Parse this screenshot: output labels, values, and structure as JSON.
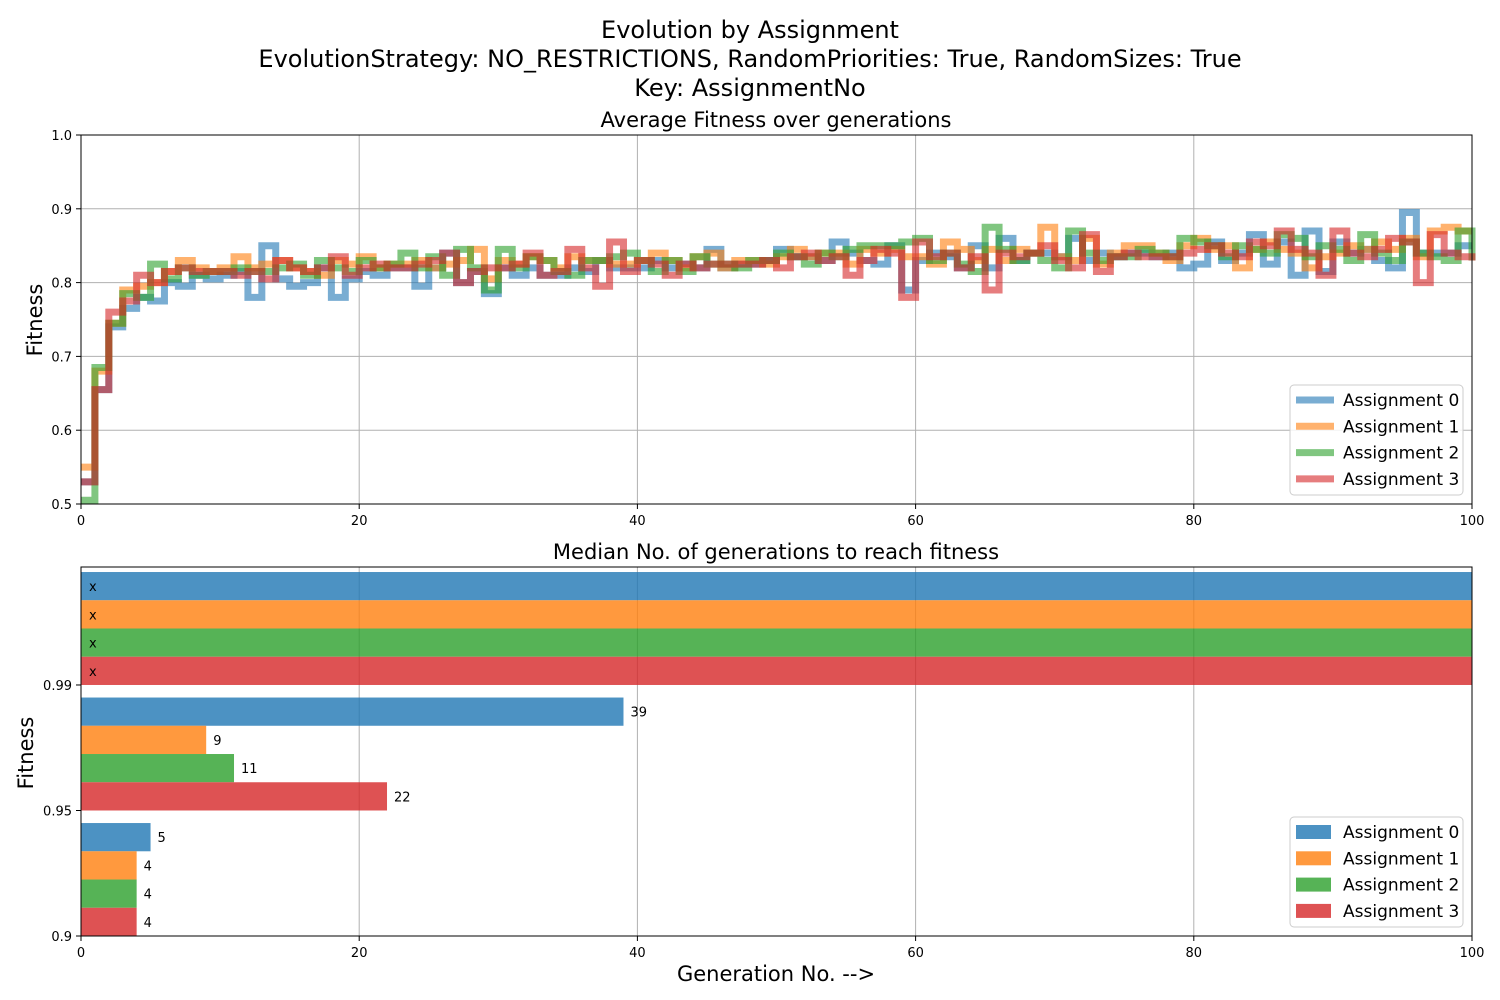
{
  "figure": {
    "title_lines": [
      "Evolution by Assignment",
      "EvolutionStrategy: NO_RESTRICTIONS, RandomPriorities: True, RandomSizes: True",
      "Key: AssignmentNo"
    ],
    "xlabel": "Generation No. -->"
  },
  "colors": {
    "Assignment 0": "#1f77b4",
    "Assignment 1": "#ff7f0e",
    "Assignment 2": "#2ca02c",
    "Assignment 3": "#d62728"
  },
  "chart_data": [
    {
      "type": "line",
      "title": "Average Fitness over generations",
      "xlabel": "",
      "ylabel": "Fitness",
      "xlim": [
        0,
        100
      ],
      "ylim": [
        0.5,
        1.0
      ],
      "x_ticks": [
        0,
        20,
        40,
        60,
        80,
        100
      ],
      "y_ticks": [
        0.5,
        0.6,
        0.7,
        0.8,
        0.9,
        1.0
      ],
      "y_tick_labels": [
        "0.5",
        "0.6",
        "0.7",
        "0.8",
        "0.9",
        "1.0"
      ],
      "grid": true,
      "legend_position": "lower-right",
      "drawstyle": "steps",
      "series": [
        {
          "name": "Assignment 0",
          "values": [
            0.53,
            0.655,
            0.74,
            0.765,
            0.78,
            0.775,
            0.8,
            0.795,
            0.81,
            0.805,
            0.81,
            0.815,
            0.78,
            0.85,
            0.805,
            0.795,
            0.8,
            0.82,
            0.78,
            0.805,
            0.815,
            0.81,
            0.82,
            0.82,
            0.795,
            0.82,
            0.84,
            0.8,
            0.815,
            0.785,
            0.82,
            0.81,
            0.82,
            0.81,
            0.81,
            0.82,
            0.815,
            0.83,
            0.82,
            0.82,
            0.82,
            0.83,
            0.82,
            0.825,
            0.82,
            0.845,
            0.82,
            0.825,
            0.825,
            0.83,
            0.845,
            0.835,
            0.835,
            0.83,
            0.855,
            0.84,
            0.83,
            0.825,
            0.85,
            0.79,
            0.83,
            0.84,
            0.835,
            0.82,
            0.85,
            0.82,
            0.86,
            0.83,
            0.84,
            0.84,
            0.835,
            0.86,
            0.83,
            0.84,
            0.835,
            0.84,
            0.84,
            0.835,
            0.84,
            0.82,
            0.825,
            0.855,
            0.83,
            0.84,
            0.865,
            0.825,
            0.855,
            0.81,
            0.87,
            0.815,
            0.855,
            0.84,
            0.845,
            0.83,
            0.82,
            0.895,
            0.84,
            0.84,
            0.84,
            0.85,
            0.85
          ]
        },
        {
          "name": "Assignment 1",
          "values": [
            0.55,
            0.68,
            0.745,
            0.79,
            0.795,
            0.8,
            0.815,
            0.83,
            0.82,
            0.815,
            0.82,
            0.835,
            0.82,
            0.825,
            0.83,
            0.82,
            0.815,
            0.81,
            0.83,
            0.825,
            0.835,
            0.82,
            0.825,
            0.825,
            0.83,
            0.82,
            0.825,
            0.83,
            0.845,
            0.805,
            0.83,
            0.825,
            0.835,
            0.83,
            0.82,
            0.835,
            0.83,
            0.83,
            0.825,
            0.825,
            0.83,
            0.84,
            0.83,
            0.82,
            0.835,
            0.84,
            0.82,
            0.83,
            0.83,
            0.825,
            0.835,
            0.845,
            0.835,
            0.84,
            0.84,
            0.825,
            0.845,
            0.84,
            0.845,
            0.835,
            0.835,
            0.825,
            0.855,
            0.845,
            0.83,
            0.845,
            0.83,
            0.845,
            0.84,
            0.875,
            0.835,
            0.83,
            0.86,
            0.825,
            0.84,
            0.85,
            0.85,
            0.84,
            0.83,
            0.85,
            0.86,
            0.845,
            0.85,
            0.82,
            0.845,
            0.855,
            0.845,
            0.84,
            0.82,
            0.835,
            0.84,
            0.85,
            0.845,
            0.855,
            0.845,
            0.86,
            0.835,
            0.87,
            0.875,
            0.87,
            0.87
          ]
        },
        {
          "name": "Assignment 2",
          "values": [
            0.505,
            0.685,
            0.745,
            0.785,
            0.78,
            0.825,
            0.805,
            0.82,
            0.81,
            0.815,
            0.815,
            0.82,
            0.815,
            0.815,
            0.82,
            0.825,
            0.81,
            0.83,
            0.82,
            0.815,
            0.83,
            0.82,
            0.825,
            0.84,
            0.82,
            0.835,
            0.81,
            0.845,
            0.82,
            0.79,
            0.845,
            0.82,
            0.835,
            0.83,
            0.815,
            0.81,
            0.83,
            0.83,
            0.835,
            0.84,
            0.83,
            0.815,
            0.83,
            0.815,
            0.835,
            0.825,
            0.825,
            0.82,
            0.83,
            0.83,
            0.84,
            0.835,
            0.825,
            0.84,
            0.835,
            0.845,
            0.85,
            0.85,
            0.85,
            0.855,
            0.86,
            0.83,
            0.84,
            0.825,
            0.815,
            0.875,
            0.845,
            0.83,
            0.84,
            0.83,
            0.82,
            0.87,
            0.84,
            0.83,
            0.835,
            0.835,
            0.845,
            0.84,
            0.835,
            0.86,
            0.855,
            0.85,
            0.835,
            0.85,
            0.845,
            0.84,
            0.865,
            0.86,
            0.835,
            0.85,
            0.845,
            0.83,
            0.865,
            0.84,
            0.83,
            0.855,
            0.84,
            0.835,
            0.83,
            0.87,
            0.83
          ]
        },
        {
          "name": "Assignment 3",
          "values": [
            0.53,
            0.655,
            0.76,
            0.775,
            0.81,
            0.8,
            0.815,
            0.82,
            0.815,
            0.815,
            0.815,
            0.81,
            0.815,
            0.805,
            0.83,
            0.82,
            0.815,
            0.82,
            0.835,
            0.81,
            0.82,
            0.825,
            0.82,
            0.82,
            0.825,
            0.83,
            0.84,
            0.8,
            0.815,
            0.82,
            0.82,
            0.825,
            0.84,
            0.81,
            0.815,
            0.845,
            0.82,
            0.795,
            0.855,
            0.815,
            0.83,
            0.825,
            0.81,
            0.825,
            0.82,
            0.825,
            0.825,
            0.825,
            0.825,
            0.83,
            0.82,
            0.835,
            0.84,
            0.83,
            0.835,
            0.81,
            0.83,
            0.845,
            0.84,
            0.78,
            0.855,
            0.835,
            0.84,
            0.82,
            0.835,
            0.79,
            0.84,
            0.835,
            0.84,
            0.85,
            0.83,
            0.82,
            0.865,
            0.815,
            0.835,
            0.84,
            0.835,
            0.835,
            0.835,
            0.84,
            0.845,
            0.85,
            0.84,
            0.835,
            0.855,
            0.85,
            0.87,
            0.845,
            0.84,
            0.81,
            0.87,
            0.84,
            0.835,
            0.845,
            0.86,
            0.855,
            0.8,
            0.865,
            0.84,
            0.835,
            0.83
          ]
        }
      ]
    },
    {
      "type": "bar",
      "orientation": "horizontal",
      "title": "Median No. of generations to reach fitness",
      "xlabel": "Generation No. -->",
      "ylabel": "Fitness",
      "xlim": [
        0,
        100
      ],
      "x_ticks": [
        0,
        20,
        40,
        60,
        80,
        100
      ],
      "categories": [
        "0.9",
        "0.95",
        "0.99"
      ],
      "grid": true,
      "legend_position": "lower-right",
      "series": [
        {
          "name": "Assignment 0",
          "values": [
            5,
            39,
            100
          ],
          "labels": [
            "5",
            "39",
            "x"
          ]
        },
        {
          "name": "Assignment 1",
          "values": [
            4,
            9,
            100
          ],
          "labels": [
            "4",
            "9",
            "x"
          ]
        },
        {
          "name": "Assignment 2",
          "values": [
            4,
            11,
            100
          ],
          "labels": [
            "4",
            "11",
            "x"
          ]
        },
        {
          "name": "Assignment 3",
          "values": [
            4,
            22,
            100
          ],
          "labels": [
            "4",
            "22",
            "x"
          ]
        }
      ]
    }
  ]
}
